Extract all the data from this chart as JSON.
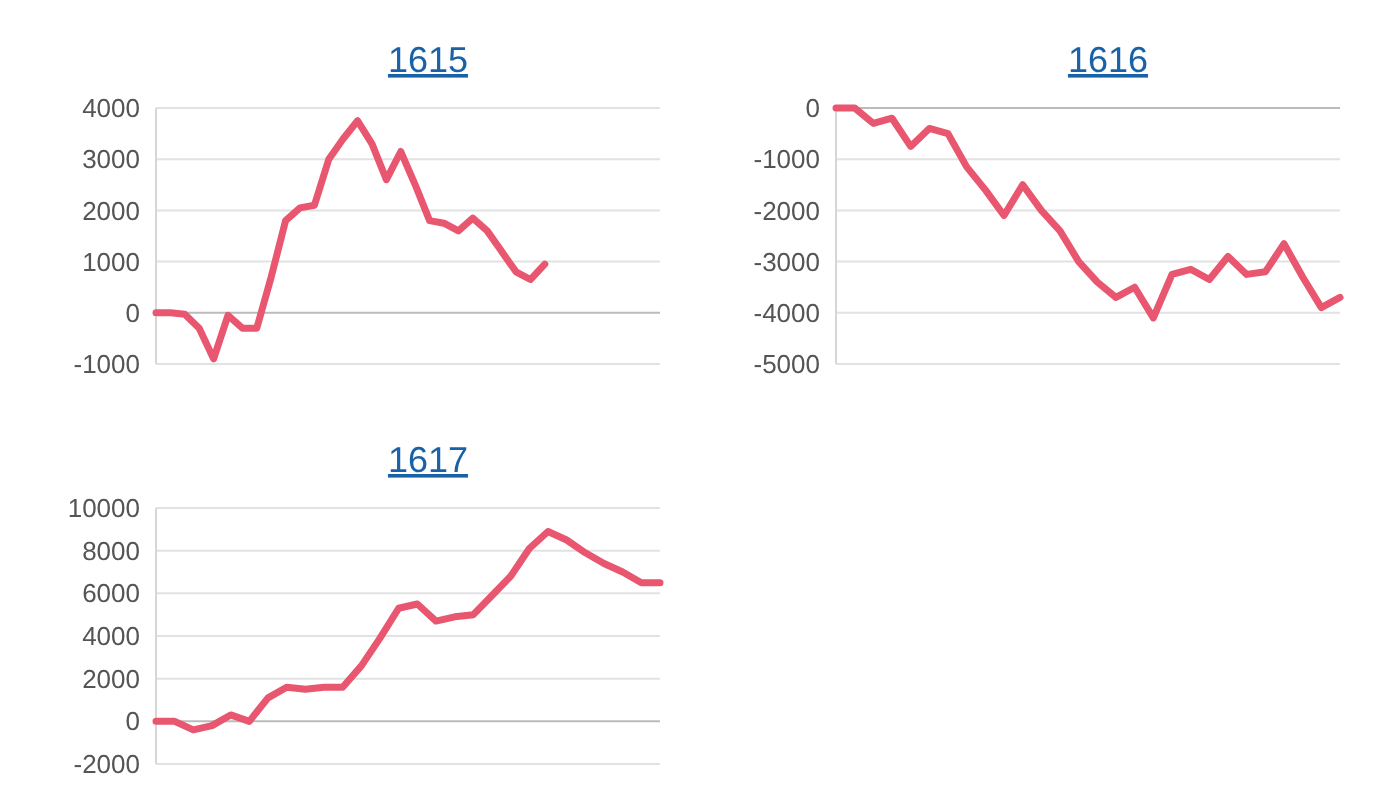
{
  "chart_data": [
    {
      "type": "line",
      "title": "1615",
      "categories": [
        null,
        null,
        null,
        null,
        null,
        null,
        null,
        null,
        null,
        null,
        null,
        null,
        null,
        null,
        null,
        null,
        null,
        null,
        null,
        null,
        null,
        null,
        null,
        null,
        null,
        null,
        null,
        null,
        null,
        null,
        null,
        null,
        null,
        null,
        null,
        null
      ],
      "series": [
        {
          "color": "#e8566f",
          "values": [
            0,
            0,
            -30,
            -300,
            -900,
            -50,
            -300,
            -300,
            700,
            1800,
            2050,
            2100,
            3000,
            3400,
            3750,
            3300,
            2600,
            3150,
            2500,
            1800,
            1750,
            1600,
            1850,
            1600,
            1200,
            800,
            650,
            950,
            null,
            null,
            null,
            null,
            null,
            null,
            null,
            null
          ]
        }
      ],
      "ylim": [
        -1000,
        4000
      ],
      "yticks": [
        -1000,
        0,
        1000,
        2000,
        3000,
        4000
      ],
      "grid": "y"
    },
    {
      "type": "line",
      "title": "1616",
      "categories": [
        null,
        null,
        null,
        null,
        null,
        null,
        null,
        null,
        null,
        null,
        null,
        null,
        null,
        null,
        null,
        null,
        null,
        null,
        null,
        null,
        null,
        null,
        null,
        null,
        null,
        null,
        null,
        null
      ],
      "series": [
        {
          "color": "#e8566f",
          "values": [
            0,
            0,
            -300,
            -200,
            -750,
            -400,
            -500,
            -1150,
            -1600,
            -2100,
            -1500,
            -2000,
            -2400,
            -3000,
            -3400,
            -3700,
            -3500,
            -4100,
            -3250,
            -3150,
            -3350,
            -2900,
            -3250,
            -3200,
            -2650,
            -3300,
            -3900,
            -3700
          ]
        }
      ],
      "ylim": [
        -5000,
        0
      ],
      "yticks": [
        -5000,
        -4000,
        -3000,
        -2000,
        -1000,
        0
      ],
      "grid": "y"
    },
    {
      "type": "line",
      "title": "1617",
      "categories": [
        null,
        null,
        null,
        null,
        null,
        null,
        null,
        null,
        null,
        null,
        null,
        null,
        null,
        null,
        null,
        null,
        null,
        null,
        null,
        null,
        null,
        null,
        null,
        null,
        null,
        null,
        null,
        null
      ],
      "series": [
        {
          "color": "#e8566f",
          "values": [
            0,
            0,
            -400,
            -200,
            300,
            0,
            1100,
            1600,
            1500,
            1600,
            1600,
            2600,
            3900,
            5300,
            5500,
            4700,
            4900,
            5000,
            5900,
            6800,
            8100,
            8900,
            8500,
            7900,
            7400,
            7000,
            6500,
            6500
          ]
        }
      ],
      "ylim": [
        -2000,
        10000
      ],
      "yticks": [
        -2000,
        0,
        2000,
        4000,
        6000,
        8000,
        10000
      ],
      "grid": "y"
    }
  ]
}
